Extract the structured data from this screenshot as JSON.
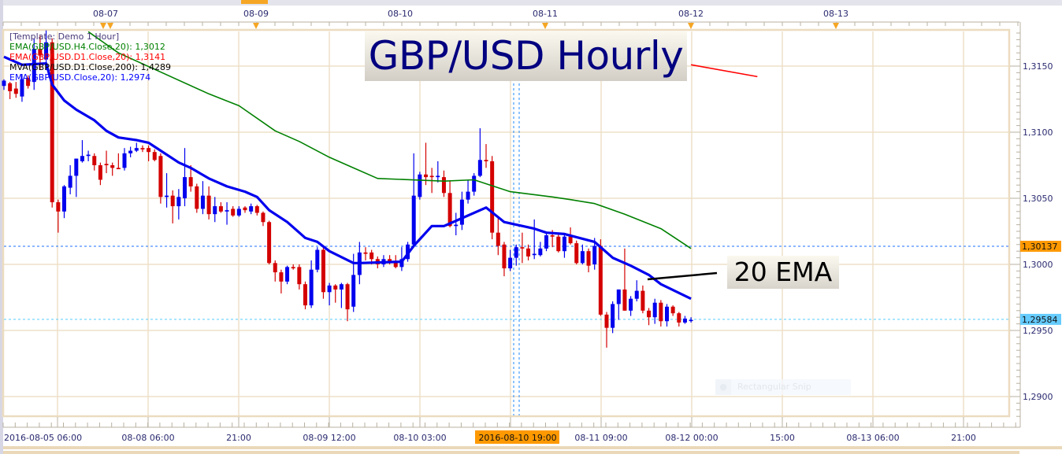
{
  "colors": {
    "bull": "#0000ee",
    "bear": "#d40000",
    "ema20": "#0000ee",
    "ema_h4": "#008000",
    "ema_d1": "#ff0000",
    "grid": "#eee0c8",
    "frame": "#e8d8b8",
    "axis_text": "#2a2a70",
    "marker": "#f5a623",
    "crosshair": "#1e88ff",
    "last_price": "#55ccff",
    "level_price": "#1e6fff"
  },
  "legend": [
    {
      "text": "[Template: Demo 1 Hour]",
      "color": "#4a3a7a"
    },
    {
      "text": "EMA(GBP/USD.H4.Close,20): 1,3012",
      "color": "#008000"
    },
    {
      "text": "EMA(GBP/USD.D1.Close,20): 1,3141",
      "color": "#ff0000"
    },
    {
      "text": "MVA(GBP/USD.D1.Close,200): 1,4289",
      "color": "#000000"
    },
    {
      "text": "EMA(GBP/USD.Close,20): 1,2974",
      "color": "#0000ff"
    }
  ],
  "annotations": {
    "title": "GBP/USD Hourly",
    "ema_label": "20 EMA",
    "snip_tooltip": "Rectangular Snip"
  },
  "chart_data": {
    "type": "candlestick",
    "symbol": "GBP/USD",
    "interval": "1 Hour",
    "ylim": [
      1.2885,
      1.3176
    ],
    "grid": true,
    "y_ticks": [
      "1,3150",
      "1,3100",
      "1,3050",
      "1,3000",
      "1,2950",
      "1,2900"
    ],
    "y_tick_values": [
      1.315,
      1.31,
      1.305,
      1.3,
      1.295,
      1.29
    ],
    "top_dates": [
      "08-07",
      "08-09",
      "08-10",
      "08-11",
      "08-12",
      "08-13"
    ],
    "x_labels": [
      "2016-08-05 06:00",
      "08-08 06:00",
      "21:00",
      "08-09 12:00",
      "08-10 03:00",
      "2016-08-10 19:00",
      "08-11 09:00",
      "08-12 00:00",
      "15:00",
      "08-13 06:00",
      "21:00"
    ],
    "crosshair_time": "2016-08-10 19:00",
    "price_levels": [
      {
        "label": "1,30137",
        "value": 1.30137,
        "bg": "#ff9900"
      },
      {
        "label": "1,29584",
        "value": 1.29584,
        "bg": "#66ccff"
      }
    ],
    "candles_ohlc": [
      [
        1.3135,
        1.314,
        1.3132,
        1.3139
      ],
      [
        1.3137,
        1.3138,
        1.3125,
        1.3131
      ],
      [
        1.3133,
        1.3138,
        1.3126,
        1.3129
      ],
      [
        1.3127,
        1.3144,
        1.3123,
        1.314
      ],
      [
        1.3141,
        1.3143,
        1.3133,
        1.3135
      ],
      [
        1.3138,
        1.3171,
        1.3132,
        1.3163
      ],
      [
        1.3163,
        1.3173,
        1.3147,
        1.3158
      ],
      [
        1.3155,
        1.3177,
        1.3147,
        1.3168
      ],
      [
        1.3168,
        1.3171,
        1.3043,
        1.3047
      ],
      [
        1.3047,
        1.3049,
        1.3024,
        1.304
      ],
      [
        1.304,
        1.306,
        1.3035,
        1.3059
      ],
      [
        1.3058,
        1.3075,
        1.3053,
        1.3067
      ],
      [
        1.3067,
        1.308,
        1.3051,
        1.308
      ],
      [
        1.3078,
        1.3094,
        1.3077,
        1.3082
      ],
      [
        1.3082,
        1.3086,
        1.3078,
        1.3083
      ],
      [
        1.3082,
        1.3084,
        1.3071,
        1.3075
      ],
      [
        1.3075,
        1.3077,
        1.306,
        1.3064
      ],
      [
        1.3076,
        1.3086,
        1.3069,
        1.3075
      ],
      [
        1.3075,
        1.3077,
        1.3067,
        1.3073
      ],
      [
        1.3073,
        1.3084,
        1.3072,
        1.3072
      ],
      [
        1.3073,
        1.3088,
        1.3071,
        1.3084
      ],
      [
        1.3084,
        1.3089,
        1.3081,
        1.3086
      ],
      [
        1.3086,
        1.3092,
        1.3085,
        1.3088
      ],
      [
        1.3088,
        1.309,
        1.3085,
        1.3087
      ],
      [
        1.3088,
        1.309,
        1.3078,
        1.3085
      ],
      [
        1.3085,
        1.3087,
        1.3078,
        1.3079
      ],
      [
        1.3082,
        1.3084,
        1.3046,
        1.3051
      ],
      [
        1.3051,
        1.3069,
        1.3043,
        1.3052
      ],
      [
        1.3052,
        1.3056,
        1.3031,
        1.3044
      ],
      [
        1.3044,
        1.3057,
        1.3034,
        1.3051
      ],
      [
        1.305,
        1.3088,
        1.3044,
        1.3066
      ],
      [
        1.3066,
        1.3075,
        1.3055,
        1.3059
      ],
      [
        1.3059,
        1.3061,
        1.3039,
        1.3042
      ],
      [
        1.3042,
        1.3063,
        1.3038,
        1.3052
      ],
      [
        1.3052,
        1.3059,
        1.3034,
        1.3038
      ],
      [
        1.3038,
        1.3051,
        1.3032,
        1.3044
      ],
      [
        1.3044,
        1.3047,
        1.3039,
        1.304
      ],
      [
        1.304,
        1.3047,
        1.303,
        1.3041
      ],
      [
        1.3042,
        1.3044,
        1.3036,
        1.3037
      ],
      [
        1.3037,
        1.3044,
        1.3036,
        1.3042
      ],
      [
        1.3043,
        1.3044,
        1.3039,
        1.3041
      ],
      [
        1.304,
        1.3046,
        1.3038,
        1.3044
      ],
      [
        1.3044,
        1.3045,
        1.3037,
        1.3039
      ],
      [
        1.3039,
        1.304,
        1.3029,
        1.3032
      ],
      [
        1.3032,
        1.3033,
        1.3,
        1.3001
      ],
      [
        1.3001,
        1.3003,
        1.2987,
        1.2994
      ],
      [
        1.2994,
        1.2996,
        1.2978,
        1.2987
      ],
      [
        1.2987,
        1.2999,
        1.2985,
        1.2998
      ],
      [
        1.2998,
        1.3,
        1.2996,
        1.2997
      ],
      [
        1.2998,
        1.3,
        1.2981,
        1.2985
      ],
      [
        1.2985,
        1.2987,
        1.2966,
        1.2969
      ],
      [
        1.2969,
        1.3003,
        1.2967,
        1.2996
      ],
      [
        1.2996,
        1.3013,
        1.2994,
        1.3011
      ],
      [
        1.3011,
        1.3013,
        1.2974,
        1.2979
      ],
      [
        1.2979,
        1.2986,
        1.2969,
        1.2984
      ],
      [
        1.2984,
        1.2985,
        1.2971,
        1.2981
      ],
      [
        1.2981,
        1.2986,
        1.2967,
        1.2985
      ],
      [
        1.2985,
        1.2986,
        1.2957,
        1.2966
      ],
      [
        1.2968,
        1.3008,
        1.2964,
        1.2992
      ],
      [
        1.2992,
        1.3017,
        1.2985,
        1.3009
      ],
      [
        1.3009,
        1.3013,
        1.3003,
        1.3008
      ],
      [
        1.3009,
        1.3011,
        1.3,
        1.3004
      ],
      [
        1.3004,
        1.3006,
        1.2997,
        1.3
      ],
      [
        1.3,
        1.3007,
        1.2998,
        1.3004
      ],
      [
        1.3004,
        1.3007,
        1.3,
        1.3001
      ],
      [
        1.3002,
        1.3007,
        1.2997,
        1.2998
      ],
      [
        1.2998,
        1.3013,
        1.2995,
        1.3004
      ],
      [
        1.3004,
        1.3017,
        1.3002,
        1.3015
      ],
      [
        1.3015,
        1.3084,
        1.3013,
        1.3052
      ],
      [
        1.3051,
        1.307,
        1.3049,
        1.3068
      ],
      [
        1.3068,
        1.3092,
        1.306,
        1.3066
      ],
      [
        1.3067,
        1.3073,
        1.3054,
        1.3066
      ],
      [
        1.3066,
        1.3078,
        1.3062,
        1.3067
      ],
      [
        1.3066,
        1.3071,
        1.3051,
        1.3054
      ],
      [
        1.3054,
        1.3063,
        1.3028,
        1.3029
      ],
      [
        1.3029,
        1.3039,
        1.3022,
        1.303
      ],
      [
        1.303,
        1.3055,
        1.3026,
        1.3049
      ],
      [
        1.3049,
        1.3064,
        1.3046,
        1.3055
      ],
      [
        1.3055,
        1.3069,
        1.3052,
        1.3067
      ],
      [
        1.3067,
        1.3103,
        1.3066,
        1.3079
      ],
      [
        1.3079,
        1.3091,
        1.3073,
        1.3078
      ],
      [
        1.3078,
        1.3082,
        1.3019,
        1.3024
      ],
      [
        1.3024,
        1.3035,
        1.3007,
        1.3014
      ],
      [
        1.3015,
        1.3017,
        1.2991,
        1.2997
      ],
      [
        1.2997,
        1.3011,
        1.2995,
        1.3005
      ],
      [
        1.3005,
        1.3015,
        1.2999,
        1.3013
      ],
      [
        1.3013,
        1.3024,
        1.3001,
        1.3012
      ],
      [
        1.3012,
        1.3015,
        1.3003,
        1.3006
      ],
      [
        1.3007,
        1.3034,
        1.3004,
        1.3008
      ],
      [
        1.3007,
        1.3017,
        1.3006,
        1.3012
      ],
      [
        1.3012,
        1.3024,
        1.301,
        1.3022
      ],
      [
        1.3022,
        1.3026,
        1.3013,
        1.3021
      ],
      [
        1.3021,
        1.3024,
        1.3009,
        1.301
      ],
      [
        1.301,
        1.3023,
        1.3005,
        1.3021
      ],
      [
        1.3021,
        1.3028,
        1.3015,
        1.3016
      ],
      [
        1.3016,
        1.3018,
        1.3,
        1.3001
      ],
      [
        1.3001,
        1.3015,
        1.3,
        1.301
      ],
      [
        1.301,
        1.3012,
        1.2994,
        1.2999
      ],
      [
        1.3,
        1.302,
        1.2996,
        1.3014
      ],
      [
        1.3014,
        1.3019,
        1.2961,
        1.2962
      ],
      [
        1.2962,
        1.2964,
        1.2937,
        1.2952
      ],
      [
        1.2952,
        1.2972,
        1.2948,
        1.297
      ],
      [
        1.297,
        1.2981,
        1.2958,
        1.2981
      ],
      [
        1.2981,
        1.3012,
        1.2965,
        1.2965
      ],
      [
        1.2965,
        1.2976,
        1.2961,
        1.2974
      ],
      [
        1.2974,
        1.2988,
        1.2972,
        1.298
      ],
      [
        1.298,
        1.2984,
        1.2963,
        1.2965
      ],
      [
        1.2965,
        1.2967,
        1.2954,
        1.296
      ],
      [
        1.296,
        1.2974,
        1.2955,
        1.2971
      ],
      [
        1.2971,
        1.2973,
        1.2953,
        1.2957
      ],
      [
        1.2957,
        1.297,
        1.2953,
        1.2968
      ],
      [
        1.2968,
        1.2969,
        1.2961,
        1.2963
      ],
      [
        1.2963,
        1.2964,
        1.2953,
        1.2956
      ],
      [
        1.2956,
        1.2961,
        1.2955,
        1.2959
      ],
      [
        1.2958,
        1.296,
        1.2956,
        1.2958
      ]
    ],
    "indicators": [
      {
        "name": "EMA(GBP/USD.Close,20)",
        "color": "#0000ee",
        "width": 3.2,
        "points": [
          [
            0,
            1.3157
          ],
          [
            3,
            1.3151
          ],
          [
            7,
            1.3152
          ],
          [
            8,
            1.3136
          ],
          [
            10,
            1.3124
          ],
          [
            12,
            1.3117
          ],
          [
            15,
            1.3109
          ],
          [
            17,
            1.3101
          ],
          [
            19,
            1.3096
          ],
          [
            22,
            1.3094
          ],
          [
            24,
            1.3092
          ],
          [
            25,
            1.3089
          ],
          [
            29,
            1.3077
          ],
          [
            31,
            1.3073
          ],
          [
            34,
            1.3065
          ],
          [
            37,
            1.3059
          ],
          [
            40,
            1.3055
          ],
          [
            42,
            1.3051
          ],
          [
            44,
            1.3041
          ],
          [
            47,
            1.3032
          ],
          [
            50,
            1.302
          ],
          [
            52,
            1.3017
          ],
          [
            54,
            1.301
          ],
          [
            58,
            1.3001
          ],
          [
            59,
            1.3001
          ],
          [
            66,
            1.3002
          ],
          [
            68,
            1.3014
          ],
          [
            71,
            1.3029
          ],
          [
            73,
            1.3029
          ],
          [
            75,
            1.3033
          ],
          [
            80,
            1.3043
          ],
          [
            83,
            1.3032
          ],
          [
            88,
            1.3027
          ],
          [
            90,
            1.3024
          ],
          [
            93,
            1.3023
          ],
          [
            98,
            1.3017
          ],
          [
            101,
            1.3005
          ],
          [
            104,
            1.2999
          ],
          [
            107,
            1.2992
          ],
          [
            109,
            1.2985
          ],
          [
            114,
            1.2974
          ]
        ]
      },
      {
        "name": "EMA(GBP/USD.H4.Close,20)",
        "color": "#008000",
        "width": 1.6,
        "points": [
          [
            14,
            1.3176
          ],
          [
            19,
            1.316
          ],
          [
            34,
            1.3129
          ],
          [
            39,
            1.312
          ],
          [
            45,
            1.3101
          ],
          [
            49,
            1.3093
          ],
          [
            54,
            1.3081
          ],
          [
            58,
            1.3073
          ],
          [
            62,
            1.3065
          ],
          [
            73,
            1.3063
          ],
          [
            78,
            1.3064
          ],
          [
            84,
            1.3055
          ],
          [
            91,
            1.3051
          ],
          [
            94,
            1.3049
          ],
          [
            98,
            1.3046
          ],
          [
            103,
            1.3038
          ],
          [
            109,
            1.3027
          ],
          [
            114,
            1.3012
          ]
        ]
      },
      {
        "name": "EMA(GBP/USD.D1.Close,20)",
        "color": "#ff0000",
        "width": 1.6,
        "points": [
          [
            114,
            1.3151
          ],
          [
            125,
            1.3142
          ]
        ]
      }
    ]
  }
}
